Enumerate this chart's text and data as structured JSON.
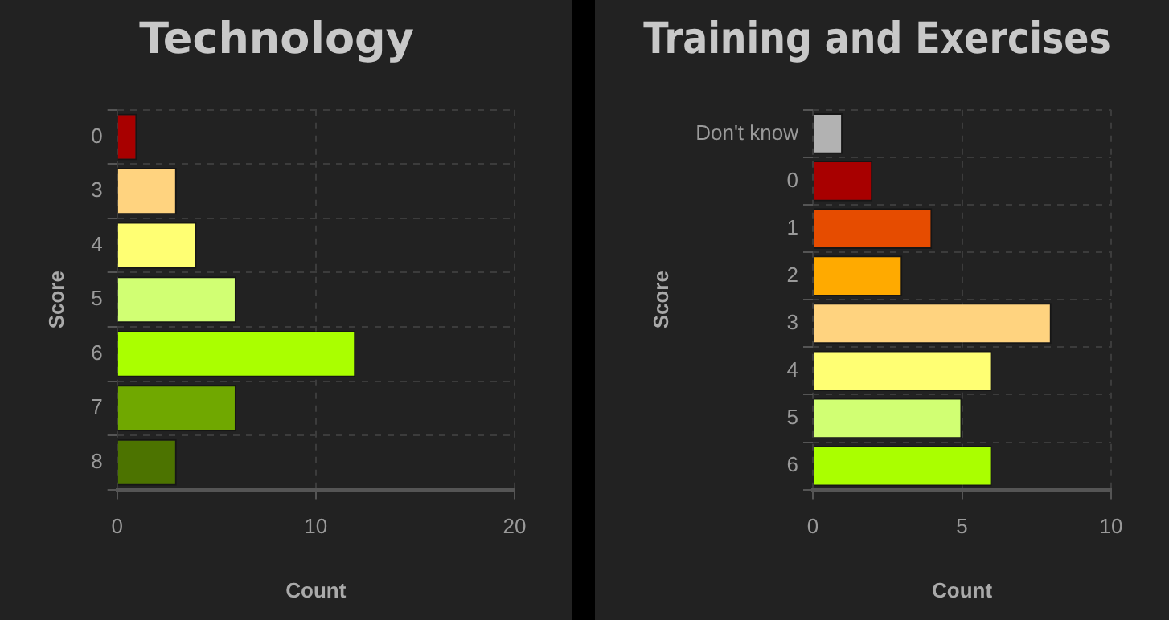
{
  "chart_data": [
    {
      "type": "bar",
      "orientation": "horizontal",
      "title": "Technology",
      "xlabel": "Count",
      "ylabel": "Score",
      "categories": [
        "0",
        "3",
        "4",
        "5",
        "6",
        "7",
        "8"
      ],
      "values": [
        1,
        3,
        4,
        6,
        12,
        6,
        3
      ],
      "colors": [
        "#a80000",
        "#ffd37f",
        "#ffff73",
        "#d1ff73",
        "#aaff00",
        "#70a800",
        "#4c7300"
      ],
      "xlim": [
        0,
        20
      ],
      "xticks": [
        0,
        10,
        20
      ],
      "grid": true,
      "legend": false
    },
    {
      "type": "bar",
      "orientation": "horizontal",
      "title": "Training and Exercises",
      "xlabel": "Count",
      "ylabel": "Score",
      "categories": [
        "Don't know",
        "0",
        "1",
        "2",
        "3",
        "4",
        "5",
        "6"
      ],
      "values": [
        1,
        2,
        4,
        3,
        8,
        6,
        5,
        6
      ],
      "colors": [
        "#b2b2b2",
        "#a80000",
        "#e64c00",
        "#ffaa00",
        "#ffd37f",
        "#ffff73",
        "#d1ff73",
        "#aaff00"
      ],
      "xlim": [
        0,
        10
      ],
      "xticks": [
        0,
        5,
        10
      ],
      "grid": true,
      "legend": false
    }
  ]
}
